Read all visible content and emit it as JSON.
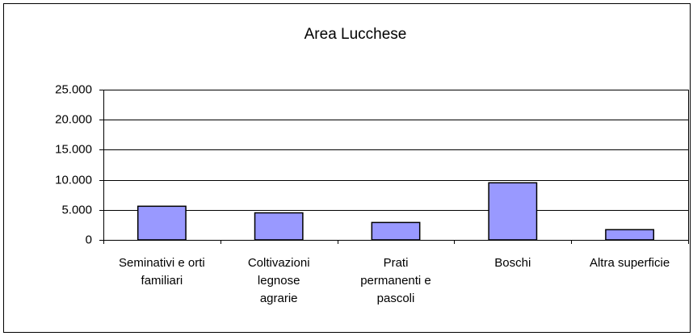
{
  "chart_data": {
    "type": "bar",
    "title": "Area Lucchese",
    "categories": [
      "Seminativi e orti familiari",
      "Coltivazioni legnose agrarie",
      "Prati permanenti e pascoli",
      "Boschi",
      "Altra superficie"
    ],
    "values": [
      5600,
      4500,
      2900,
      9500,
      1700
    ],
    "color": "#9999ff",
    "ylim": [
      0,
      25000
    ],
    "yticks": [
      0,
      {
        "value": 5000,
        "label": "5.000"
      },
      {
        "value": 10000,
        "label": "10.000"
      },
      {
        "value": 15000,
        "label": "15.000"
      },
      {
        "value": 20000,
        "label": "20.000"
      },
      {
        "value": 25000,
        "label": "25.000"
      }
    ],
    "grid": true
  }
}
